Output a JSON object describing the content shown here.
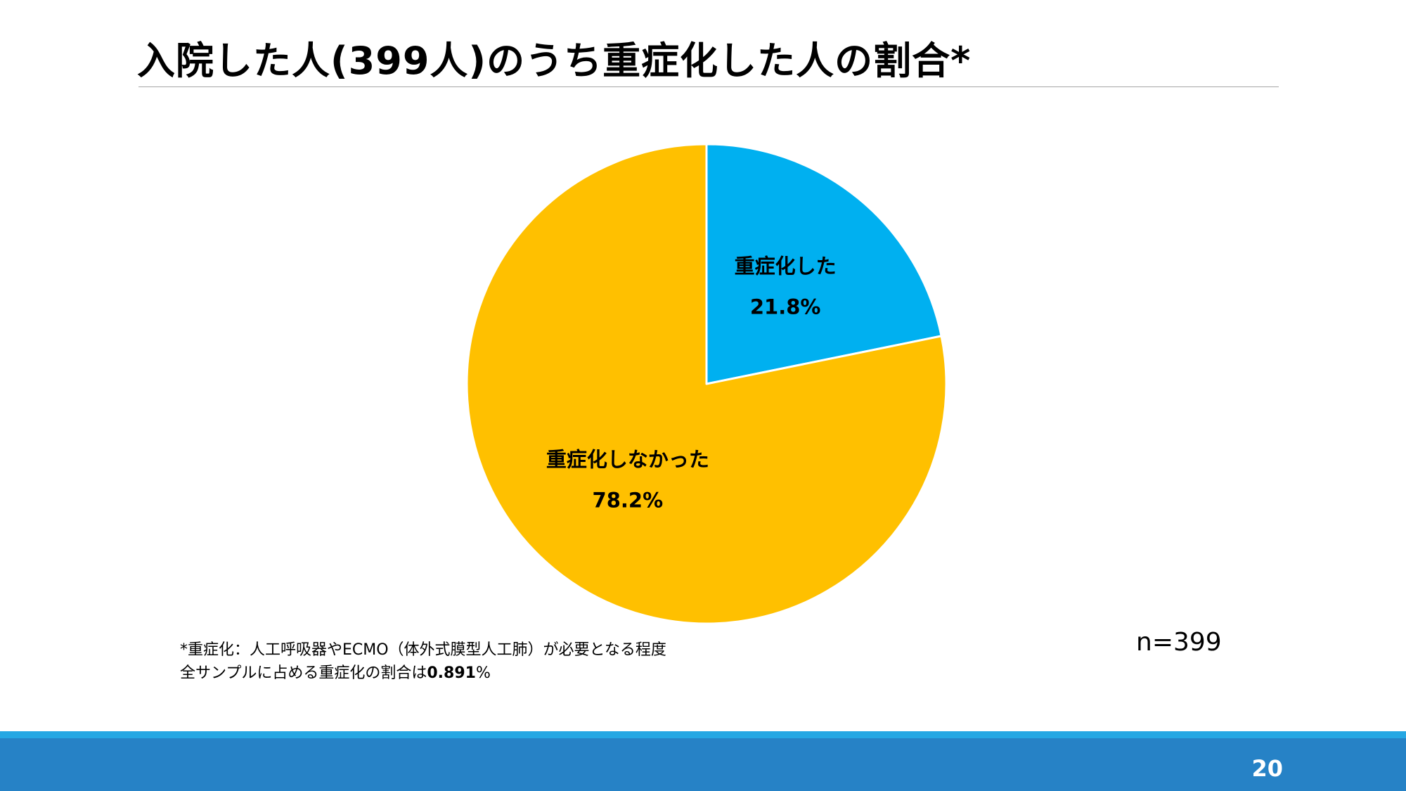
{
  "slide": {
    "title": "入院した人(399人)のうち重症化した人の割合*",
    "sample_size": "n=399",
    "footnote_line1": "*重症化：人工呼吸器やECMO（体外式膜型人工肺）が必要となる程度",
    "footnote_line2_prefix": "全サンプルに占める重症化の割合は",
    "footnote_line2_value": "0.891",
    "footnote_line2_suffix": "%",
    "page_number": "20",
    "footer_colors": {
      "stripe": "#25a7e3",
      "bar": "#2682c6"
    }
  },
  "chart_data": {
    "type": "pie",
    "title": "",
    "start_angle_deg": 0,
    "direction": "clockwise",
    "slices": [
      {
        "label": "重症化した",
        "value": 21.8,
        "value_label": "21.8%",
        "color": "#00b0f0"
      },
      {
        "label": "重症化しなかった",
        "value": 78.2,
        "value_label": "78.2%",
        "color": "#ffc000"
      }
    ],
    "slice_border_color": "#ffffff",
    "legend": "none"
  }
}
